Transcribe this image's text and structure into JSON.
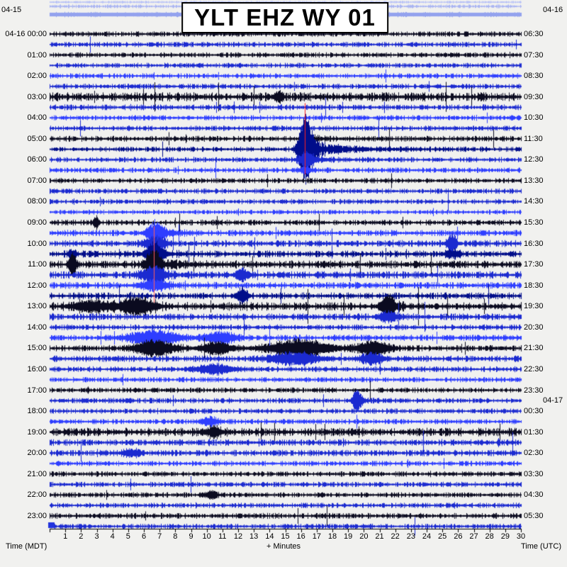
{
  "title": "YLT EHZ WY 01",
  "dates": {
    "top_left": "04-15",
    "top_right": "04-16",
    "utc_rollover": "04-17"
  },
  "axis": {
    "left": "Time (MDT)",
    "center": "+ Minutes",
    "right": "Time (UTC)"
  },
  "chart_data": {
    "type": "line",
    "subtype": "helicorder-seismogram",
    "title": "YLT EHZ WY 01",
    "xlabel": "+ Minutes",
    "x_range_minutes": [
      0,
      30
    ],
    "minutes_per_line": 30,
    "x_ticks": [
      1,
      2,
      3,
      4,
      5,
      6,
      7,
      8,
      9,
      10,
      11,
      12,
      13,
      14,
      15,
      16,
      17,
      18,
      19,
      20,
      21,
      22,
      23,
      24,
      25,
      26,
      27,
      28,
      29,
      30
    ],
    "left_axis": "Time (MDT)",
    "right_axis": "Time (UTC)",
    "top_partial_traces": [
      {
        "color": "#b6c0f6",
        "amp": 0.5
      },
      {
        "color": "#a9b4f2",
        "amp": 0.7
      },
      {
        "color": "#93a2ee",
        "amp": 1.0,
        "band": true
      }
    ],
    "rows": [
      {
        "mdt": "04-16 00:00",
        "utc": "06:30",
        "traces": [
          {
            "color": "#0b0b20",
            "amp": 1.0
          },
          {
            "color": "#1b2ad0",
            "amp": 1.0
          }
        ]
      },
      {
        "mdt": "01:00",
        "utc": "07:30",
        "traces": [
          {
            "color": "#0b0b20",
            "amp": 1.0
          },
          {
            "color": "#1b2ad0",
            "amp": 1.0
          }
        ]
      },
      {
        "mdt": "02:00",
        "utc": "08:30",
        "traces": [
          {
            "color": "#2e3eff",
            "amp": 1.0
          },
          {
            "color": "#1b2ad0",
            "amp": 1.0
          }
        ]
      },
      {
        "mdt": "03:00",
        "utc": "09:30",
        "traces": [
          {
            "color": "#0b0b20",
            "amp": 1.7
          },
          {
            "color": "#1b2ad0",
            "amp": 1.1
          }
        ]
      },
      {
        "mdt": "04:00",
        "utc": "10:30",
        "traces": [
          {
            "color": "#2e3eff",
            "amp": 1.0
          },
          {
            "color": "#1b2ad0",
            "amp": 1.0
          }
        ]
      },
      {
        "mdt": "05:00",
        "utc": "11:30",
        "traces": [
          {
            "color": "#0b0b20",
            "amp": 1.1
          },
          {
            "color": "#000d8a",
            "amp": 1.0
          }
        ]
      },
      {
        "mdt": "06:00",
        "utc": "12:30",
        "traces": [
          {
            "color": "#1b2ad0",
            "amp": 1.0
          },
          {
            "color": "#2e3eff",
            "amp": 1.0
          }
        ]
      },
      {
        "mdt": "07:00",
        "utc": "13:30",
        "traces": [
          {
            "color": "#0b0b20",
            "amp": 1.0
          },
          {
            "color": "#1b2ad0",
            "amp": 1.0
          }
        ]
      },
      {
        "mdt": "08:00",
        "utc": "14:30",
        "traces": [
          {
            "color": "#1b2ad0",
            "amp": 1.0
          },
          {
            "color": "#2e3eff",
            "amp": 0.9
          }
        ]
      },
      {
        "mdt": "09:00",
        "utc": "15:30",
        "traces": [
          {
            "color": "#0b0b20",
            "amp": 1.1
          },
          {
            "color": "#2e3eff",
            "amp": 1.2
          }
        ]
      },
      {
        "mdt": "10:00",
        "utc": "16:30",
        "traces": [
          {
            "color": "#1b2ad0",
            "amp": 1.3
          },
          {
            "color": "#000d8a",
            "amp": 1.3
          }
        ]
      },
      {
        "mdt": "11:00",
        "utc": "17:30",
        "traces": [
          {
            "color": "#0b0b20",
            "amp": 1.5
          },
          {
            "color": "#1b2ad0",
            "amp": 1.4
          }
        ]
      },
      {
        "mdt": "12:00",
        "utc": "18:30",
        "traces": [
          {
            "color": "#2e3eff",
            "amp": 1.3
          },
          {
            "color": "#000d8a",
            "amp": 1.3
          }
        ]
      },
      {
        "mdt": "13:00",
        "utc": "19:30",
        "traces": [
          {
            "color": "#0b0b20",
            "amp": 1.6
          },
          {
            "color": "#1b2ad0",
            "amp": 1.3
          }
        ]
      },
      {
        "mdt": "14:00",
        "utc": "20:30",
        "traces": [
          {
            "color": "#1b2ad0",
            "amp": 1.1
          },
          {
            "color": "#2e3eff",
            "amp": 1.2
          }
        ]
      },
      {
        "mdt": "15:00",
        "utc": "21:30",
        "traces": [
          {
            "color": "#0b0b20",
            "amp": 1.2
          },
          {
            "color": "#1b2ad0",
            "amp": 1.2
          }
        ]
      },
      {
        "mdt": "16:00",
        "utc": "22:30",
        "traces": [
          {
            "color": "#1b2ad0",
            "amp": 1.1
          },
          {
            "color": "#2e3eff",
            "amp": 1.0
          }
        ]
      },
      {
        "mdt": "17:00",
        "utc": "23:30",
        "traces": [
          {
            "color": "#0b0b20",
            "amp": 1.0
          },
          {
            "color": "#1b2ad0",
            "amp": 1.0
          }
        ]
      },
      {
        "mdt": "18:00",
        "utc": "00:30",
        "traces": [
          {
            "color": "#1b2ad0",
            "amp": 1.0
          },
          {
            "color": "#2e3eff",
            "amp": 1.0
          }
        ]
      },
      {
        "mdt": "19:00",
        "utc": "01:30",
        "traces": [
          {
            "color": "#0b0b20",
            "amp": 1.6
          },
          {
            "color": "#1b2ad0",
            "amp": 1.2
          }
        ]
      },
      {
        "mdt": "20:00",
        "utc": "02:30",
        "traces": [
          {
            "color": "#1b2ad0",
            "amp": 1.2
          },
          {
            "color": "#2e3eff",
            "amp": 1.0
          }
        ]
      },
      {
        "mdt": "21:00",
        "utc": "03:30",
        "traces": [
          {
            "color": "#0b0b20",
            "amp": 1.0
          },
          {
            "color": "#1b2ad0",
            "amp": 1.0
          }
        ]
      },
      {
        "mdt": "22:00",
        "utc": "04:30",
        "traces": [
          {
            "color": "#0b0b20",
            "amp": 1.0
          },
          {
            "color": "#1b2ad0",
            "amp": 1.0
          }
        ]
      },
      {
        "mdt": "23:00",
        "utc": "05:30",
        "traces": [
          {
            "color": "#0b0b20",
            "amp": 1.1
          },
          {
            "color": "#1b2ad0",
            "amp": 1.0
          }
        ]
      }
    ],
    "events": [
      {
        "trace": 9,
        "min": 16.25,
        "amp": 5,
        "w": 0.15
      },
      {
        "trace": 10,
        "min": 16.22,
        "amp": 18,
        "w": 0.15,
        "coda": 0.8
      },
      {
        "trace": 11,
        "min": 16.25,
        "amp": 46,
        "w": 0.3,
        "coda": 2.0
      },
      {
        "trace": 12,
        "min": 16.3,
        "amp": 10,
        "w": 0.35,
        "coda": 1.5
      },
      {
        "trace": 13,
        "min": 16.3,
        "amp": 4,
        "w": 0.3
      },
      {
        "trace": 6,
        "min": 14.6,
        "amp": 7,
        "w": 0.18
      },
      {
        "trace": 18,
        "min": 2.95,
        "amp": 9,
        "w": 0.12
      },
      {
        "trace": 19,
        "min": 6.7,
        "amp": 13,
        "w": 0.4,
        "coda": 1.2
      },
      {
        "trace": 20,
        "min": 6.7,
        "amp": 9,
        "w": 0.5
      },
      {
        "trace": 21,
        "min": 6.6,
        "amp": 15,
        "w": 0.35,
        "coda": 1.0
      },
      {
        "trace": 22,
        "min": 6.55,
        "amp": 20,
        "w": 0.3,
        "coda": 1.8
      },
      {
        "trace": 23,
        "min": 6.6,
        "amp": 11,
        "w": 0.5,
        "coda": 1.0
      },
      {
        "trace": 24,
        "min": 6.7,
        "amp": 7,
        "w": 0.6
      },
      {
        "trace": 22,
        "min": 1.45,
        "amp": 17,
        "w": 0.15
      },
      {
        "trace": 21,
        "min": 1.45,
        "amp": 5,
        "w": 0.2
      },
      {
        "trace": 20,
        "min": 25.6,
        "amp": 14,
        "w": 0.2
      },
      {
        "trace": 21,
        "min": 25.6,
        "amp": 5,
        "w": 0.3
      },
      {
        "trace": 23,
        "min": 12.3,
        "amp": 8,
        "w": 0.3
      },
      {
        "trace": 25,
        "min": 12.25,
        "amp": 10,
        "w": 0.25
      },
      {
        "trace": 26,
        "min": 2.6,
        "amp": 7,
        "w": 0.8
      },
      {
        "trace": 26,
        "min": 5.6,
        "amp": 11,
        "w": 0.8
      },
      {
        "trace": 26,
        "min": 21.5,
        "amp": 15,
        "w": 0.3,
        "coda": 0.8
      },
      {
        "trace": 27,
        "min": 21.55,
        "amp": 7,
        "w": 0.4
      },
      {
        "trace": 29,
        "min": 6.6,
        "amp": 10,
        "w": 1.1
      },
      {
        "trace": 29,
        "min": 10.8,
        "amp": 8,
        "w": 0.7
      },
      {
        "trace": 30,
        "min": 6.7,
        "amp": 10,
        "w": 0.9
      },
      {
        "trace": 30,
        "min": 10.6,
        "amp": 8,
        "w": 0.7
      },
      {
        "trace": 30,
        "min": 15.9,
        "amp": 11,
        "w": 1.4
      },
      {
        "trace": 30,
        "min": 20.6,
        "amp": 9,
        "w": 0.7
      },
      {
        "trace": 31,
        "min": 15.6,
        "amp": 8,
        "w": 1.1
      },
      {
        "trace": 31,
        "min": 20.5,
        "amp": 6,
        "w": 0.6
      },
      {
        "trace": 32,
        "min": 10.5,
        "amp": 6,
        "w": 0.9
      },
      {
        "trace": 35,
        "min": 19.55,
        "amp": 15,
        "w": 0.2,
        "coda": 0.6
      },
      {
        "trace": 37,
        "min": 10.2,
        "amp": 5,
        "w": 0.4
      },
      {
        "trace": 38,
        "min": 10.4,
        "amp": 6,
        "w": 0.4
      },
      {
        "trace": 40,
        "min": 5.2,
        "amp": 5,
        "w": 0.4
      },
      {
        "trace": 44,
        "min": 10.3,
        "amp": 5,
        "w": 0.3
      }
    ],
    "red_event_lines": [
      {
        "minute": 16.25,
        "from_trace": 6.6,
        "to_trace": 13.4,
        "color": "#ff2020"
      },
      {
        "minute": 6.63,
        "from_trace": 18.35,
        "to_trace": 25.65,
        "color": "#ff5a5a"
      }
    ],
    "start_marker_color": "#2233dd",
    "background": "#f1f1ef"
  }
}
